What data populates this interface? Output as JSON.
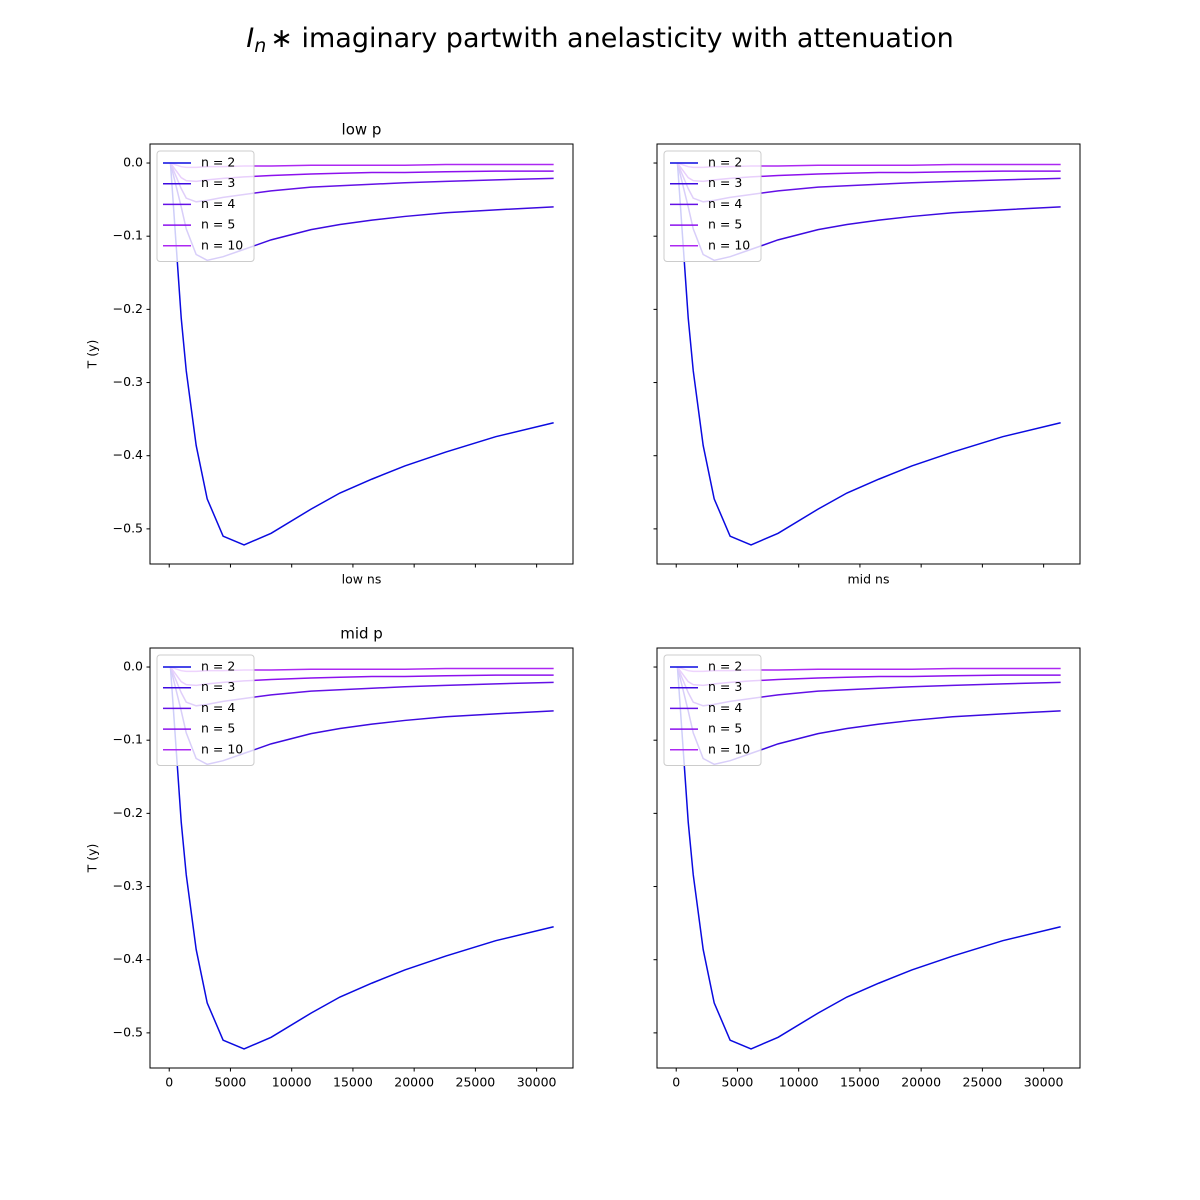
{
  "title_parts": [
    "I",
    "n",
    "∗  imaginary partwith anelasticity with attenuation"
  ],
  "chart_data": [
    {
      "type": "line",
      "title": "low p",
      "xlabel": "low ns",
      "ylabel": "T (y)",
      "xtick_labels": false,
      "ytick_labels": true,
      "legend": "upper left",
      "x": [
        100,
        980,
        1390,
        2200,
        3100,
        4400,
        6110,
        8320,
        11580,
        13940,
        16550,
        19240,
        22580,
        26660,
        31390
      ],
      "xlim": [
        -1570,
        32970
      ],
      "xticks": [
        0,
        5000,
        10000,
        15000,
        20000,
        25000,
        30000
      ],
      "ylim": [
        -0.548,
        0.026
      ],
      "yticks": [
        {
          "value": 0,
          "label": "0.0"
        },
        {
          "value": -0.1,
          "label": "−0.1"
        },
        {
          "value": -0.2,
          "label": "−0.2"
        },
        {
          "value": -0.3,
          "label": "−0.3"
        },
        {
          "value": -0.4,
          "label": "−0.4"
        },
        {
          "value": -0.5,
          "label": "−0.5"
        }
      ],
      "series": [
        {
          "name": "n = 2",
          "color": "#0a0ae0",
          "values": [
            0,
            -0.212,
            -0.284,
            -0.386,
            -0.459,
            -0.51,
            -0.522,
            -0.506,
            -0.473,
            -0.451,
            -0.432,
            -0.414,
            -0.395,
            -0.374,
            -0.355
          ]
        },
        {
          "name": "n = 3",
          "color": "#3c0ae0",
          "values": [
            0,
            -0.06,
            -0.09,
            -0.125,
            -0.133,
            -0.128,
            -0.118,
            -0.105,
            -0.091,
            -0.084,
            -0.078,
            -0.073,
            -0.068,
            -0.064,
            -0.06
          ]
        },
        {
          "name": "n = 4",
          "color": "#6410e6",
          "values": [
            0,
            -0.035,
            -0.048,
            -0.053,
            -0.051,
            -0.047,
            -0.043,
            -0.038,
            -0.033,
            -0.031,
            -0.029,
            -0.027,
            -0.025,
            -0.023,
            -0.021
          ]
        },
        {
          "name": "n = 5",
          "color": "#8c10ee",
          "values": [
            0,
            -0.02,
            -0.024,
            -0.025,
            -0.023,
            -0.021,
            -0.019,
            -0.017,
            -0.015,
            -0.014,
            -0.013,
            -0.013,
            -0.012,
            -0.011,
            -0.011
          ]
        },
        {
          "name": "n = 10",
          "color": "#ac28f2",
          "values": [
            0,
            -0.005,
            -0.006,
            -0.006,
            -0.005,
            -0.005,
            -0.004,
            -0.004,
            -0.003,
            -0.003,
            -0.003,
            -0.003,
            -0.002,
            -0.002,
            -0.002
          ]
        }
      ]
    },
    {
      "type": "line",
      "xlabel": "mid ns",
      "xtick_labels": false,
      "ytick_labels": false,
      "legend": "upper left",
      "x": [
        100,
        980,
        1390,
        2200,
        3100,
        4400,
        6110,
        8320,
        11580,
        13940,
        16550,
        19240,
        22580,
        26660,
        31390
      ],
      "xlim": [
        -1570,
        32970
      ],
      "xticks": [
        0,
        5000,
        10000,
        15000,
        20000,
        25000,
        30000
      ],
      "ylim": [
        -0.548,
        0.026
      ],
      "yticks": [
        {
          "value": 0,
          "label": "0.0"
        },
        {
          "value": -0.1,
          "label": "−0.1"
        },
        {
          "value": -0.2,
          "label": "−0.2"
        },
        {
          "value": -0.3,
          "label": "−0.3"
        },
        {
          "value": -0.4,
          "label": "−0.4"
        },
        {
          "value": -0.5,
          "label": "−0.5"
        }
      ],
      "series": [
        {
          "name": "n = 2",
          "color": "#0a0ae0",
          "values": [
            0,
            -0.212,
            -0.284,
            -0.386,
            -0.459,
            -0.51,
            -0.522,
            -0.506,
            -0.473,
            -0.451,
            -0.432,
            -0.414,
            -0.395,
            -0.374,
            -0.355
          ]
        },
        {
          "name": "n = 3",
          "color": "#3c0ae0",
          "values": [
            0,
            -0.06,
            -0.09,
            -0.125,
            -0.133,
            -0.128,
            -0.118,
            -0.105,
            -0.091,
            -0.084,
            -0.078,
            -0.073,
            -0.068,
            -0.064,
            -0.06
          ]
        },
        {
          "name": "n = 4",
          "color": "#6410e6",
          "values": [
            0,
            -0.035,
            -0.048,
            -0.053,
            -0.051,
            -0.047,
            -0.043,
            -0.038,
            -0.033,
            -0.031,
            -0.029,
            -0.027,
            -0.025,
            -0.023,
            -0.021
          ]
        },
        {
          "name": "n = 5",
          "color": "#8c10ee",
          "values": [
            0,
            -0.02,
            -0.024,
            -0.025,
            -0.023,
            -0.021,
            -0.019,
            -0.017,
            -0.015,
            -0.014,
            -0.013,
            -0.013,
            -0.012,
            -0.011,
            -0.011
          ]
        },
        {
          "name": "n = 10",
          "color": "#ac28f2",
          "values": [
            0,
            -0.005,
            -0.006,
            -0.006,
            -0.005,
            -0.005,
            -0.004,
            -0.004,
            -0.003,
            -0.003,
            -0.003,
            -0.003,
            -0.002,
            -0.002,
            -0.002
          ]
        }
      ]
    },
    {
      "type": "line",
      "title": "mid p",
      "ylabel": "T (y)",
      "xtick_labels": true,
      "ytick_labels": true,
      "legend": "upper left",
      "x": [
        100,
        980,
        1390,
        2200,
        3100,
        4400,
        6110,
        8320,
        11580,
        13940,
        16550,
        19240,
        22580,
        26660,
        31390
      ],
      "xlim": [
        -1570,
        32970
      ],
      "xticks": [
        0,
        5000,
        10000,
        15000,
        20000,
        25000,
        30000
      ],
      "ylim": [
        -0.548,
        0.026
      ],
      "yticks": [
        {
          "value": 0,
          "label": "0.0"
        },
        {
          "value": -0.1,
          "label": "−0.1"
        },
        {
          "value": -0.2,
          "label": "−0.2"
        },
        {
          "value": -0.3,
          "label": "−0.3"
        },
        {
          "value": -0.4,
          "label": "−0.4"
        },
        {
          "value": -0.5,
          "label": "−0.5"
        }
      ],
      "series": [
        {
          "name": "n = 2",
          "color": "#0a0ae0",
          "values": [
            0,
            -0.212,
            -0.284,
            -0.386,
            -0.459,
            -0.51,
            -0.522,
            -0.506,
            -0.473,
            -0.451,
            -0.432,
            -0.414,
            -0.395,
            -0.374,
            -0.355
          ]
        },
        {
          "name": "n = 3",
          "color": "#3c0ae0",
          "values": [
            0,
            -0.06,
            -0.09,
            -0.125,
            -0.133,
            -0.128,
            -0.118,
            -0.105,
            -0.091,
            -0.084,
            -0.078,
            -0.073,
            -0.068,
            -0.064,
            -0.06
          ]
        },
        {
          "name": "n = 4",
          "color": "#6410e6",
          "values": [
            0,
            -0.035,
            -0.048,
            -0.053,
            -0.051,
            -0.047,
            -0.043,
            -0.038,
            -0.033,
            -0.031,
            -0.029,
            -0.027,
            -0.025,
            -0.023,
            -0.021
          ]
        },
        {
          "name": "n = 5",
          "color": "#8c10ee",
          "values": [
            0,
            -0.02,
            -0.024,
            -0.025,
            -0.023,
            -0.021,
            -0.019,
            -0.017,
            -0.015,
            -0.014,
            -0.013,
            -0.013,
            -0.012,
            -0.011,
            -0.011
          ]
        },
        {
          "name": "n = 10",
          "color": "#ac28f2",
          "values": [
            0,
            -0.005,
            -0.006,
            -0.006,
            -0.005,
            -0.005,
            -0.004,
            -0.004,
            -0.003,
            -0.003,
            -0.003,
            -0.003,
            -0.002,
            -0.002,
            -0.002
          ]
        }
      ]
    },
    {
      "type": "line",
      "xtick_labels": true,
      "ytick_labels": false,
      "legend": "upper left",
      "x": [
        100,
        980,
        1390,
        2200,
        3100,
        4400,
        6110,
        8320,
        11580,
        13940,
        16550,
        19240,
        22580,
        26660,
        31390
      ],
      "xlim": [
        -1570,
        32970
      ],
      "xticks": [
        0,
        5000,
        10000,
        15000,
        20000,
        25000,
        30000
      ],
      "ylim": [
        -0.548,
        0.026
      ],
      "yticks": [
        {
          "value": 0,
          "label": "0.0"
        },
        {
          "value": -0.1,
          "label": "−0.1"
        },
        {
          "value": -0.2,
          "label": "−0.2"
        },
        {
          "value": -0.3,
          "label": "−0.3"
        },
        {
          "value": -0.4,
          "label": "−0.4"
        },
        {
          "value": -0.5,
          "label": "−0.5"
        }
      ],
      "series": [
        {
          "name": "n = 2",
          "color": "#0a0ae0",
          "values": [
            0,
            -0.212,
            -0.284,
            -0.386,
            -0.459,
            -0.51,
            -0.522,
            -0.506,
            -0.473,
            -0.451,
            -0.432,
            -0.414,
            -0.395,
            -0.374,
            -0.355
          ]
        },
        {
          "name": "n = 3",
          "color": "#3c0ae0",
          "values": [
            0,
            -0.06,
            -0.09,
            -0.125,
            -0.133,
            -0.128,
            -0.118,
            -0.105,
            -0.091,
            -0.084,
            -0.078,
            -0.073,
            -0.068,
            -0.064,
            -0.06
          ]
        },
        {
          "name": "n = 4",
          "color": "#6410e6",
          "values": [
            0,
            -0.035,
            -0.048,
            -0.053,
            -0.051,
            -0.047,
            -0.043,
            -0.038,
            -0.033,
            -0.031,
            -0.029,
            -0.027,
            -0.025,
            -0.023,
            -0.021
          ]
        },
        {
          "name": "n = 5",
          "color": "#8c10ee",
          "values": [
            0,
            -0.02,
            -0.024,
            -0.025,
            -0.023,
            -0.021,
            -0.019,
            -0.017,
            -0.015,
            -0.014,
            -0.013,
            -0.013,
            -0.012,
            -0.011,
            -0.011
          ]
        },
        {
          "name": "n = 10",
          "color": "#ac28f2",
          "values": [
            0,
            -0.005,
            -0.006,
            -0.006,
            -0.005,
            -0.005,
            -0.004,
            -0.004,
            -0.003,
            -0.003,
            -0.003,
            -0.003,
            -0.002,
            -0.002,
            -0.002
          ]
        }
      ]
    }
  ]
}
